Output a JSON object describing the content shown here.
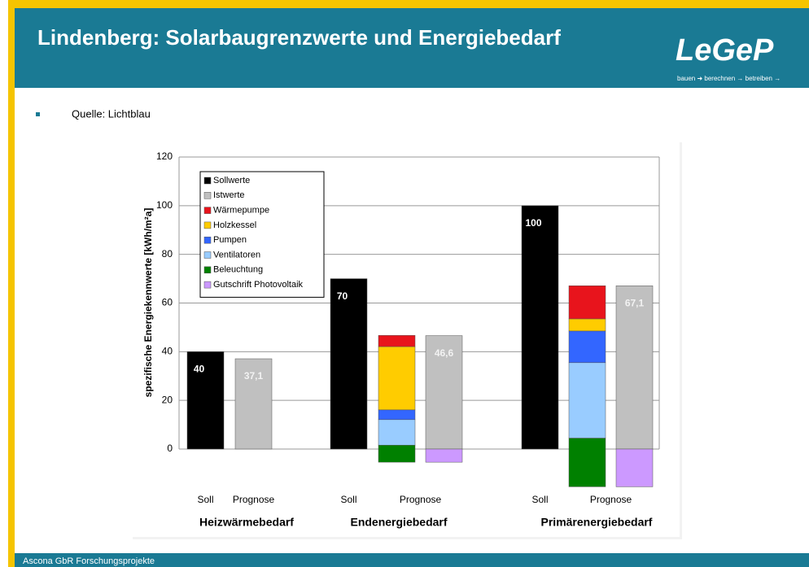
{
  "header": {
    "title": "Lindenberg: Solarbaugrenzwerte und Energiebedarf",
    "logo": "LeGeP",
    "tagline": "bauen ➜ berechnen → betreiben →"
  },
  "bullet": "Quelle: Lichtblau",
  "footer": "Ascona GbR Forschungsprojekte",
  "chart_data": {
    "type": "bar",
    "y_label": "spezifische Energiekennwerte [kWh/m²a]",
    "categories": [
      "Heizwärmebedarf",
      "Endenergiebedarf",
      "Primärenergiebedarf"
    ],
    "sub_labels": [
      "Soll",
      "Prognose"
    ],
    "series": [
      {
        "name": "Sollwerte",
        "color": "#000000",
        "values": [
          40,
          70,
          100
        ]
      },
      {
        "name": "Istwerte",
        "color": "#c0c0c0",
        "values": [
          37.1,
          46.6,
          67.1
        ],
        "value_labels": [
          "37,1",
          "46,6",
          "67,1"
        ]
      },
      {
        "name": "Wärmepumpe",
        "color": "#e8141c",
        "values": [
          null,
          4.6,
          13.6
        ]
      },
      {
        "name": "Holzkessel",
        "color": "#ffcc00",
        "values": [
          null,
          26,
          5
        ]
      },
      {
        "name": "Pumpen",
        "color": "#3366ff",
        "values": [
          null,
          4,
          13
        ]
      },
      {
        "name": "Ventilatoren",
        "color": "#99ccff",
        "values": [
          null,
          10.5,
          31
        ]
      },
      {
        "name": "Beleuchtung",
        "color": "#008000",
        "values": [
          null,
          7,
          20
        ]
      },
      {
        "name": "Gutschrift Photovoltaik",
        "color": "#cc99ff",
        "values": [
          null,
          -5.4,
          -15.5
        ]
      }
    ],
    "ylim": [
      -20,
      120
    ],
    "yticks": [
      0,
      20,
      40,
      60,
      80,
      100,
      120
    ],
    "grid": true,
    "legend": "top-left"
  }
}
